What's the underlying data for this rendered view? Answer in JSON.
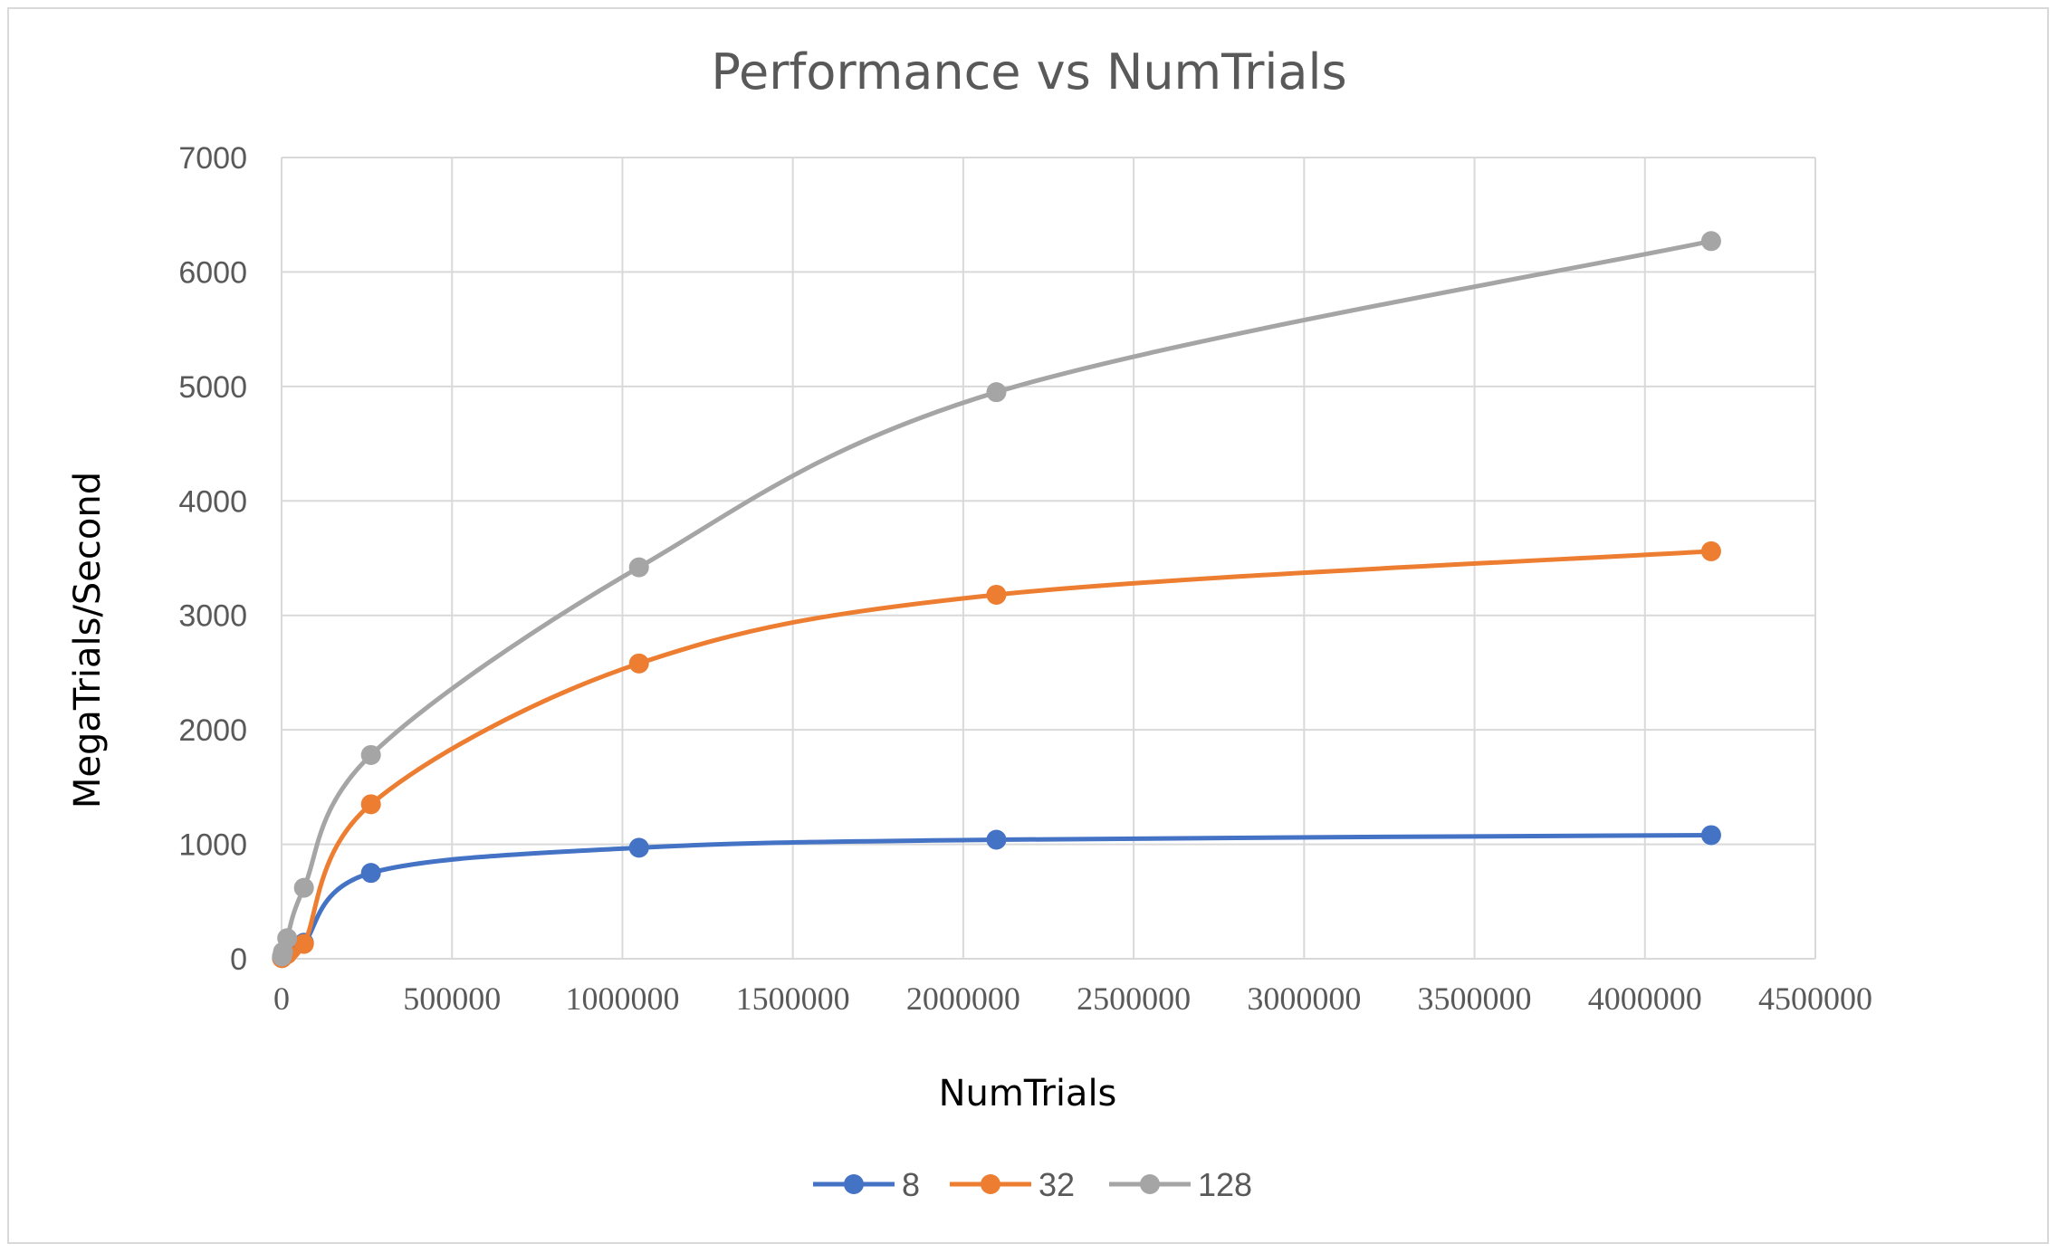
{
  "chart_data": {
    "type": "scatter",
    "title": "Performance vs NumTrials",
    "xlabel": "NumTrials",
    "ylabel": "MegaTrials/Second",
    "xlim": [
      0,
      4500000
    ],
    "ylim": [
      0,
      7000
    ],
    "x_ticks": [
      "0",
      "500000",
      "1000000",
      "1500000",
      "2000000",
      "2500000",
      "3000000",
      "3500000",
      "4000000",
      "4500000"
    ],
    "y_ticks": [
      "0",
      "1000",
      "2000",
      "3000",
      "4000",
      "5000",
      "6000",
      "7000"
    ],
    "grid": true,
    "smooth_lines": true,
    "legend_position": "bottom",
    "series": [
      {
        "name": "8",
        "color": "#4472C4",
        "points": [
          [
            1024,
            10
          ],
          [
            4096,
            30
          ],
          [
            16384,
            50
          ],
          [
            65536,
            140
          ],
          [
            262144,
            750
          ],
          [
            1048576,
            970
          ],
          [
            2097152,
            1040
          ],
          [
            4194304,
            1080
          ]
        ]
      },
      {
        "name": "32",
        "color": "#ED7D31",
        "points": [
          [
            1024,
            5
          ],
          [
            4096,
            15
          ],
          [
            16384,
            40
          ],
          [
            65536,
            130
          ],
          [
            262144,
            1350
          ],
          [
            1048576,
            2580
          ],
          [
            2097152,
            3180
          ],
          [
            4194304,
            3560
          ]
        ]
      },
      {
        "name": "128",
        "color": "#A5A5A5",
        "points": [
          [
            1024,
            20
          ],
          [
            4096,
            60
          ],
          [
            16384,
            180
          ],
          [
            65536,
            620
          ],
          [
            262144,
            1780
          ],
          [
            1048576,
            3420
          ],
          [
            2097152,
            4950
          ],
          [
            4194304,
            6270
          ]
        ]
      }
    ]
  }
}
